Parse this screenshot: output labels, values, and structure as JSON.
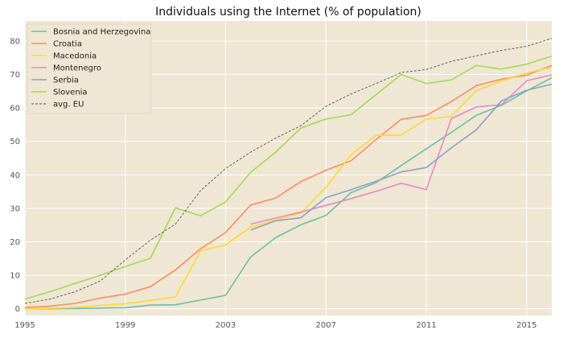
{
  "chart_data": {
    "type": "line",
    "title": "Individuals using the Internet (% of population)",
    "xlabel": "",
    "ylabel": "",
    "xlim": [
      1995,
      2016
    ],
    "ylim": [
      -2,
      86
    ],
    "x_ticks": [
      1995,
      1999,
      2003,
      2007,
      2011,
      2015
    ],
    "y_ticks": [
      0,
      10,
      20,
      30,
      40,
      50,
      60,
      70,
      80
    ],
    "grid": true,
    "legend_position": "top-left",
    "background": "#efe6d3",
    "series": [
      {
        "name": "Bosnia and Herzegovina",
        "color": "#66c2a5",
        "dash": false,
        "x": [
          1995,
          1996,
          1997,
          1998,
          1999,
          2000,
          2001,
          2002,
          2003,
          2004,
          2005,
          2006,
          2007,
          2008,
          2009,
          2010,
          2011,
          2012,
          2013,
          2014,
          2015,
          2016
        ],
        "y": [
          0,
          0,
          0.1,
          0.2,
          0.3,
          1.1,
          1.2,
          2.6,
          4.0,
          15.5,
          21.3,
          25.1,
          27.9,
          34.7,
          37.7,
          42.8,
          47.8,
          52.7,
          57.8,
          60.8,
          65.1,
          69.0
        ]
      },
      {
        "name": "Croatia",
        "color": "#fc8d62",
        "dash": false,
        "x": [
          1995,
          1996,
          1997,
          1998,
          1999,
          2000,
          2001,
          2002,
          2003,
          2004,
          2005,
          2006,
          2007,
          2008,
          2009,
          2010,
          2011,
          2012,
          2013,
          2014,
          2015,
          2016
        ],
        "y": [
          0.4,
          0.8,
          1.6,
          3.2,
          4.4,
          6.6,
          11.6,
          17.9,
          22.8,
          31.0,
          33.1,
          38.0,
          41.4,
          44.2,
          50.6,
          56.6,
          57.8,
          61.9,
          66.7,
          68.6,
          69.8,
          72.7
        ]
      },
      {
        "name": "Macedonia",
        "color": "#ffd92f",
        "dash": false,
        "x": [
          1995,
          1996,
          1997,
          1998,
          1999,
          2000,
          2001,
          2002,
          2003,
          2004,
          2005,
          2006,
          2007,
          2008,
          2009,
          2010,
          2011,
          2012,
          2013,
          2014,
          2015,
          2016
        ],
        "y": [
          0,
          0.1,
          0.4,
          1.0,
          1.5,
          2.5,
          3.5,
          17.3,
          19.1,
          24.4,
          26.5,
          28.6,
          36.3,
          46.0,
          51.8,
          51.9,
          56.7,
          57.5,
          65.2,
          68.1,
          70.4,
          72.2
        ]
      },
      {
        "name": "Montenegro",
        "color": "#e78ac3",
        "dash": false,
        "x": [
          2004,
          2005,
          2006,
          2007,
          2008,
          2009,
          2010,
          2011,
          2012,
          2013,
          2014,
          2015,
          2016
        ],
        "y": [
          25.3,
          27.1,
          28.9,
          30.9,
          32.9,
          35.1,
          37.5,
          35.6,
          56.8,
          60.3,
          61.0,
          68.1,
          69.9
        ]
      },
      {
        "name": "Serbia",
        "color": "#8da0cb",
        "dash": false,
        "x": [
          2004,
          2005,
          2006,
          2007,
          2008,
          2009,
          2010,
          2011,
          2012,
          2013,
          2014,
          2015,
          2016
        ],
        "y": [
          23.5,
          26.3,
          27.2,
          33.2,
          35.6,
          38.1,
          40.9,
          42.2,
          48.1,
          53.5,
          62.1,
          65.3,
          67.1
        ]
      },
      {
        "name": "Slovenia",
        "color": "#a6d854",
        "dash": false,
        "x": [
          1995,
          1996,
          1997,
          1998,
          1999,
          2000,
          2001,
          2002,
          2003,
          2004,
          2005,
          2006,
          2007,
          2008,
          2009,
          2010,
          2011,
          2012,
          2013,
          2014,
          2015,
          2016
        ],
        "y": [
          2.9,
          5.1,
          7.6,
          10.0,
          12.6,
          15.1,
          30.2,
          27.8,
          31.9,
          40.8,
          46.8,
          54.0,
          56.7,
          58.0,
          64.0,
          70.0,
          67.3,
          68.4,
          72.7,
          71.6,
          73.1,
          75.5
        ]
      },
      {
        "name": "avg. EU",
        "color": "#555555",
        "dash": true,
        "x": [
          1995,
          1996,
          1997,
          1998,
          1999,
          2000,
          2001,
          2002,
          2003,
          2004,
          2005,
          2006,
          2007,
          2008,
          2009,
          2010,
          2011,
          2012,
          2013,
          2014,
          2015,
          2016
        ],
        "y": [
          1.6,
          2.9,
          5.1,
          8.3,
          14.6,
          20.5,
          25.3,
          35.3,
          41.9,
          46.8,
          51.0,
          54.7,
          60.5,
          64.2,
          67.3,
          70.6,
          71.5,
          73.9,
          75.6,
          77.2,
          78.4,
          80.8
        ]
      }
    ]
  }
}
